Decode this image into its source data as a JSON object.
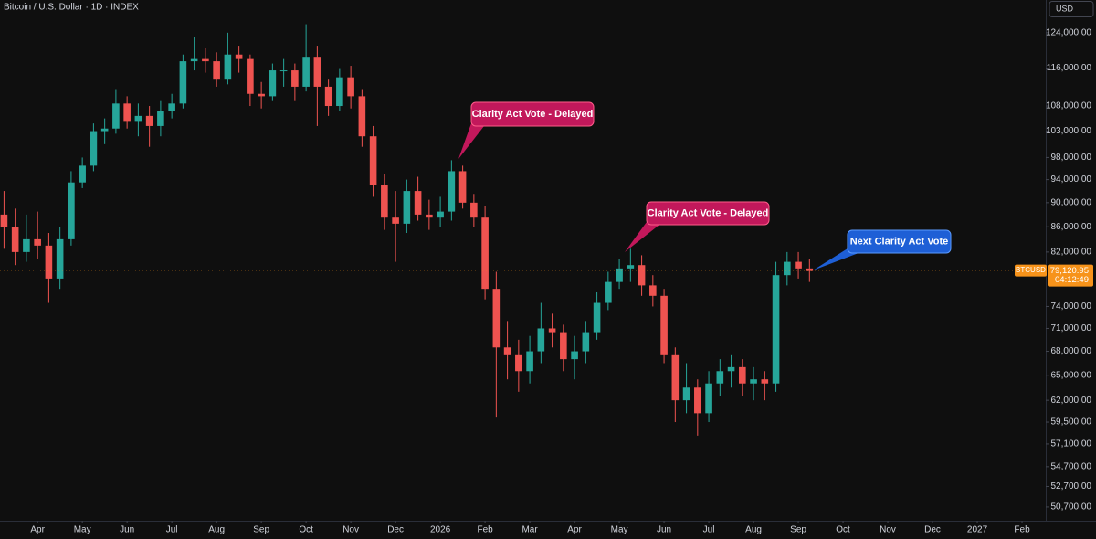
{
  "chart_data": {
    "type": "candlestick",
    "title": "Bitcoin / U.S. Dollar · 1D · INDEX",
    "currency": "USD",
    "log_scale": true,
    "grid": false,
    "xlim": [
      -0.84,
      22.53
    ],
    "xticks": [
      {
        "value": 0,
        "label": "Apr"
      },
      {
        "value": 1,
        "label": "May"
      },
      {
        "value": 2,
        "label": "Jun"
      },
      {
        "value": 3,
        "label": "Jul"
      },
      {
        "value": 4,
        "label": "Aug"
      },
      {
        "value": 5,
        "label": "Sep"
      },
      {
        "value": 6,
        "label": "Oct"
      },
      {
        "value": 7,
        "label": "Nov"
      },
      {
        "value": 8,
        "label": "Dec"
      },
      {
        "value": 9,
        "label": "2026"
      },
      {
        "value": 10,
        "label": "Feb"
      },
      {
        "value": 11,
        "label": "Mar"
      },
      {
        "value": 12,
        "label": "Apr"
      },
      {
        "value": 13,
        "label": "May"
      },
      {
        "value": 14,
        "label": "Jun"
      },
      {
        "value": 15,
        "label": "Jul"
      },
      {
        "value": 16,
        "label": "Aug"
      },
      {
        "value": 17,
        "label": "Sep"
      },
      {
        "value": 18,
        "label": "Oct"
      },
      {
        "value": 19,
        "label": "Nov"
      },
      {
        "value": 20,
        "label": "Dec"
      },
      {
        "value": 21,
        "label": "2027"
      },
      {
        "value": 22,
        "label": "Feb"
      }
    ],
    "ylim": [
      49400,
      131900
    ],
    "yticks": [
      {
        "value": 124000,
        "label": "124,000.00"
      },
      {
        "value": 116000,
        "label": "116,000.00"
      },
      {
        "value": 108000,
        "label": "108,000.00"
      },
      {
        "value": 103000,
        "label": "103,000.00"
      },
      {
        "value": 98000,
        "label": "98,000.00"
      },
      {
        "value": 94000,
        "label": "94,000.00"
      },
      {
        "value": 90000,
        "label": "90,000.00"
      },
      {
        "value": 86000,
        "label": "86,000.00"
      },
      {
        "value": 82000,
        "label": "82,000.00"
      },
      {
        "value": 74000,
        "label": "74,000.00"
      },
      {
        "value": 71000,
        "label": "71,000.00"
      },
      {
        "value": 68000,
        "label": "68,000.00"
      },
      {
        "value": 65000,
        "label": "65,000.00"
      },
      {
        "value": 62000,
        "label": "62,000.00"
      },
      {
        "value": 59500,
        "label": "59,500.00"
      },
      {
        "value": 57100,
        "label": "57,100.00"
      },
      {
        "value": 54700,
        "label": "54,700.00"
      },
      {
        "value": 52700,
        "label": "52,700.00"
      },
      {
        "value": 50700,
        "label": "50,700.00"
      }
    ],
    "series": [
      {
        "name": "BTCUSD",
        "up_color": "#26a69a",
        "down_color": "#ef5350",
        "last_price_label": "79,120.95",
        "countdown": "04:12:49",
        "x": [
          -0.75,
          -0.5,
          -0.25,
          0,
          0.25,
          0.5,
          0.75,
          1,
          1.25,
          1.5,
          1.75,
          2,
          2.25,
          2.5,
          2.75,
          3,
          3.25,
          3.5,
          3.75,
          4,
          4.25,
          4.5,
          4.75,
          5,
          5.25,
          5.5,
          5.75,
          6,
          6.25,
          6.5,
          6.75,
          7,
          7.25,
          7.5,
          7.75,
          8,
          8.25,
          8.5,
          8.75,
          9,
          9.25,
          9.5,
          9.75,
          10,
          10.25,
          10.5,
          10.75,
          11,
          11.25,
          11.5,
          11.75,
          12,
          12.25,
          12.5,
          12.75,
          13,
          13.25,
          13.5,
          13.75,
          14,
          14.25,
          14.5,
          14.75,
          15,
          15.25,
          15.5,
          15.75,
          16,
          16.25,
          16.5,
          16.75,
          17,
          17.25
        ],
        "open": [
          88000,
          86000,
          82000,
          84000,
          83000,
          78000,
          84000,
          93500,
          96500,
          103000,
          103500,
          108500,
          105000,
          106000,
          104000,
          107000,
          108500,
          117500,
          118000,
          117500,
          113500,
          119000,
          118000,
          110500,
          110000,
          115500,
          115500,
          112000,
          118500,
          112000,
          108000,
          114000,
          110000,
          102000,
          93000,
          87500,
          86500,
          92000,
          88000,
          87500,
          88500,
          95500,
          90000,
          87500,
          76500,
          68500,
          67500,
          65500,
          68000,
          71000,
          70500,
          67000,
          68000,
          70500,
          74500,
          77500,
          79500,
          80000,
          77000,
          75500,
          67500,
          62000,
          63500,
          60500,
          64000,
          65500,
          66000,
          64000,
          64500,
          64000,
          78500,
          80500,
          79500
        ],
        "high": [
          92000,
          89000,
          88000,
          88500,
          85000,
          86000,
          95500,
          98000,
          104500,
          105500,
          111500,
          110000,
          108500,
          108000,
          109000,
          110500,
          119000,
          123000,
          120500,
          119500,
          124000,
          121000,
          119000,
          113000,
          117000,
          118000,
          117000,
          126000,
          121000,
          113500,
          116000,
          116500,
          111500,
          104000,
          95000,
          92000,
          94000,
          94500,
          90500,
          91000,
          97500,
          96500,
          91500,
          89500,
          79000,
          72000,
          69500,
          70000,
          74500,
          73000,
          71500,
          70000,
          72000,
          76000,
          79000,
          81000,
          82500,
          81500,
          78500,
          76500,
          68500,
          66500,
          64500,
          65500,
          67000,
          67500,
          67000,
          66000,
          65500,
          80500,
          82000,
          82000,
          81000
        ],
        "low": [
          82500,
          80000,
          80500,
          81000,
          74500,
          76500,
          83000,
          92500,
          95500,
          100500,
          102500,
          103500,
          102000,
          100000,
          102000,
          105500,
          107500,
          115500,
          115000,
          112000,
          112500,
          115000,
          108000,
          107500,
          109000,
          112000,
          109000,
          111000,
          104000,
          106000,
          107000,
          107500,
          100000,
          91000,
          85500,
          80500,
          85000,
          87000,
          85500,
          86000,
          87000,
          89000,
          86000,
          75000,
          60000,
          64500,
          63000,
          64000,
          66500,
          68500,
          65500,
          64500,
          66500,
          69500,
          73500,
          76500,
          77500,
          75500,
          74000,
          66500,
          59500,
          60500,
          58000,
          59500,
          62500,
          63500,
          62500,
          62000,
          62000,
          63000,
          77000,
          78000,
          77500
        ],
        "close": [
          86000,
          82000,
          84000,
          83000,
          78000,
          84000,
          93500,
          96500,
          103000,
          103500,
          108500,
          105000,
          106000,
          104000,
          107000,
          108500,
          117500,
          118000,
          117500,
          113500,
          119000,
          118000,
          110500,
          110000,
          115500,
          115500,
          112000,
          118500,
          112000,
          108000,
          114000,
          110000,
          102000,
          93000,
          87500,
          86500,
          92000,
          88000,
          87500,
          88500,
          95500,
          90000,
          87500,
          76500,
          68500,
          67500,
          65500,
          68000,
          71000,
          70500,
          67000,
          68000,
          70500,
          74500,
          77500,
          79500,
          80000,
          77000,
          75500,
          67500,
          62000,
          63500,
          60500,
          64000,
          65500,
          66000,
          64000,
          64500,
          64000,
          78500,
          80500,
          79500,
          79120.95
        ]
      }
    ],
    "annotations": [
      {
        "text": "Clarity Act Vote - Delayed",
        "color": "#c2185b"
      },
      {
        "text": "Clarity Act Vote - Delayed",
        "color": "#c2185b"
      },
      {
        "text": "Next Clarity Act Vote",
        "color": "#1e5fd6"
      }
    ]
  }
}
